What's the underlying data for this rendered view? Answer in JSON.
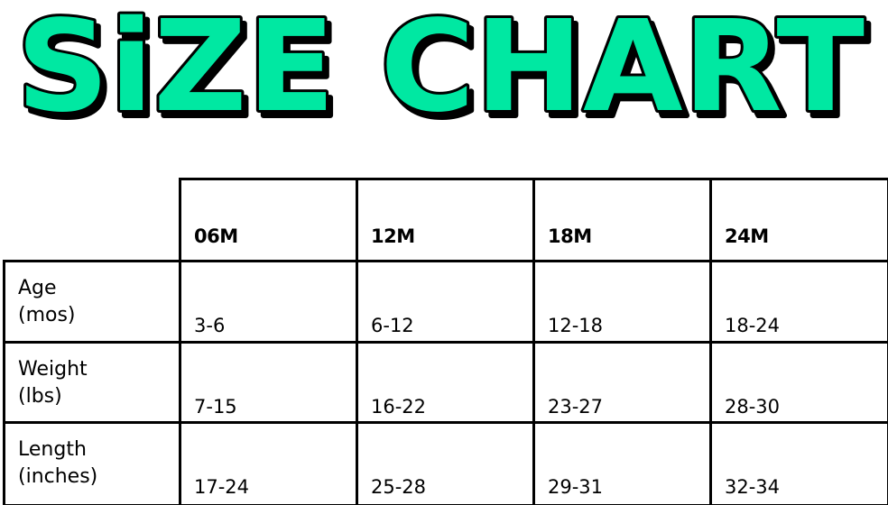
{
  "title": "SiZE CHART",
  "colors": {
    "title_fill": "#00E8A2",
    "outline": "#000000"
  },
  "table": {
    "columns": [
      "06M",
      "12M",
      "18M",
      "24M"
    ],
    "rows": [
      {
        "label": "Age\n(mos)",
        "values": [
          "3-6",
          "6-12",
          "12-18",
          "18-24"
        ]
      },
      {
        "label": "Weight\n(lbs)",
        "values": [
          "7-15",
          "16-22",
          "23-27",
          "28-30"
        ]
      },
      {
        "label": "Length\n(inches)",
        "values": [
          "17-24",
          "25-28",
          "29-31",
          "32-34"
        ]
      }
    ]
  }
}
